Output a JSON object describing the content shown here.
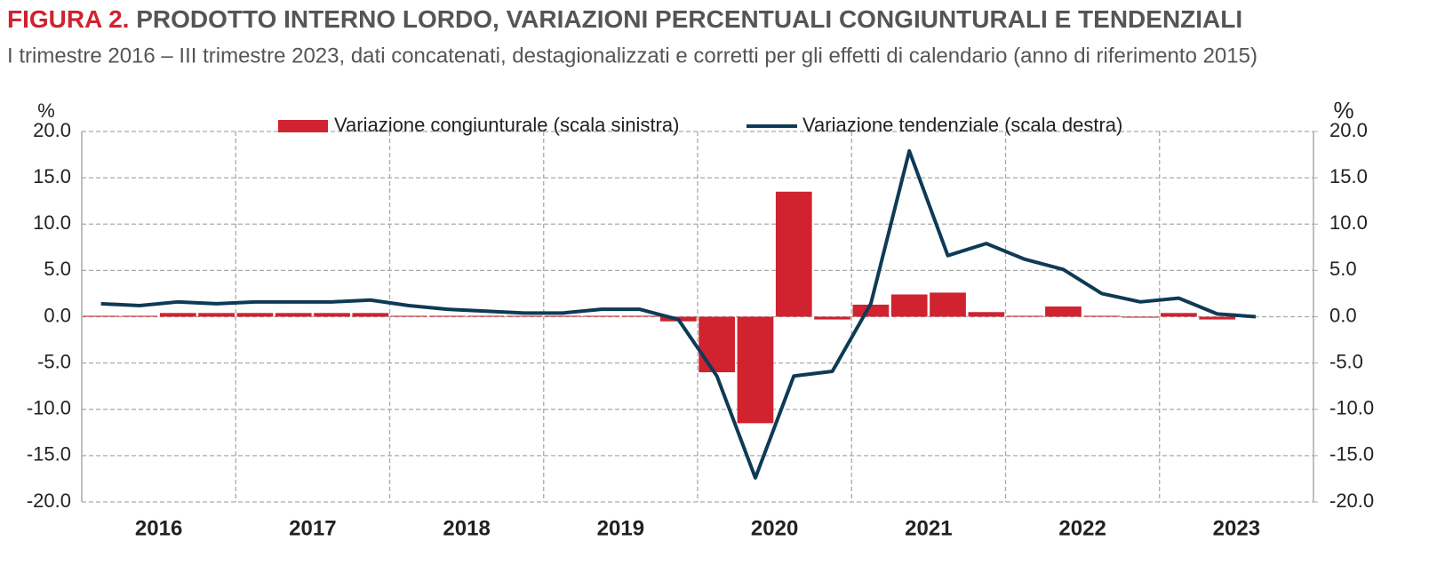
{
  "chart_data": {
    "type": "bar-line",
    "figure_label": "FIGURA 2.",
    "title": "PRODOTTO INTERNO LORDO, VARIAZIONI PERCENTUALI CONGIUNTURALI E TENDENZIALI",
    "subtitle": "I trimestre 2016 – III trimestre 2023, dati concatenati, destagionalizzati e corretti per gli effetti di calendario (anno di riferimento 2015)",
    "y_unit": "%",
    "y2_unit": "%",
    "year_labels": [
      "2016",
      "2017",
      "2018",
      "2019",
      "2020",
      "2021",
      "2022",
      "2023"
    ],
    "quarters_per_year": 4,
    "ylim": [
      -20,
      20
    ],
    "y2lim": [
      -20,
      20
    ],
    "yticks": [
      {
        "value": 20,
        "label": "20.0"
      },
      {
        "value": 15,
        "label": "15.0"
      },
      {
        "value": 10,
        "label": "10.0"
      },
      {
        "value": 5,
        "label": "5.0"
      },
      {
        "value": 0,
        "label": "0.0"
      },
      {
        "value": -5,
        "label": "-5.0"
      },
      {
        "value": -10,
        "label": "-10.0"
      },
      {
        "value": -15,
        "label": "-15.0"
      },
      {
        "value": -20,
        "label": "-20.0"
      }
    ],
    "y2ticks": [
      {
        "value": 20,
        "label": "20.0"
      },
      {
        "value": 15,
        "label": "15.0"
      },
      {
        "value": 10,
        "label": "10.0"
      },
      {
        "value": 5,
        "label": "5.0"
      },
      {
        "value": 0,
        "label": "0.0"
      },
      {
        "value": -5,
        "label": "-5.0"
      },
      {
        "value": -10,
        "label": "-10.0"
      },
      {
        "value": -15,
        "label": "-15.0"
      },
      {
        "value": -20,
        "label": "-20.0"
      }
    ],
    "grid": true,
    "series": [
      {
        "name": "Variazione congiunturale (scala sinistra)",
        "type": "bar",
        "color": "#d0222f",
        "values": [
          0.1,
          0.1,
          0.4,
          0.4,
          0.4,
          0.4,
          0.4,
          0.4,
          0.1,
          0.1,
          0.1,
          0.1,
          0.1,
          0.1,
          0.1,
          -0.5,
          -6.0,
          -11.5,
          13.5,
          -0.3,
          1.3,
          2.4,
          2.6,
          0.5,
          0.1,
          1.1,
          0.1,
          -0.1,
          0.4,
          -0.3,
          0.0
        ]
      },
      {
        "name": "Variazione tendenziale (scala destra)",
        "type": "line",
        "axis": "y2",
        "color": "#0e3a55",
        "values": [
          1.4,
          1.2,
          1.6,
          1.4,
          1.6,
          1.6,
          1.6,
          1.8,
          1.2,
          0.8,
          0.6,
          0.4,
          0.4,
          0.8,
          0.8,
          -0.3,
          -6.4,
          -17.4,
          -6.4,
          -5.9,
          1.4,
          17.9,
          6.6,
          7.9,
          6.2,
          5.1,
          2.5,
          1.6,
          2.0,
          0.3,
          0.0
        ]
      }
    ]
  }
}
